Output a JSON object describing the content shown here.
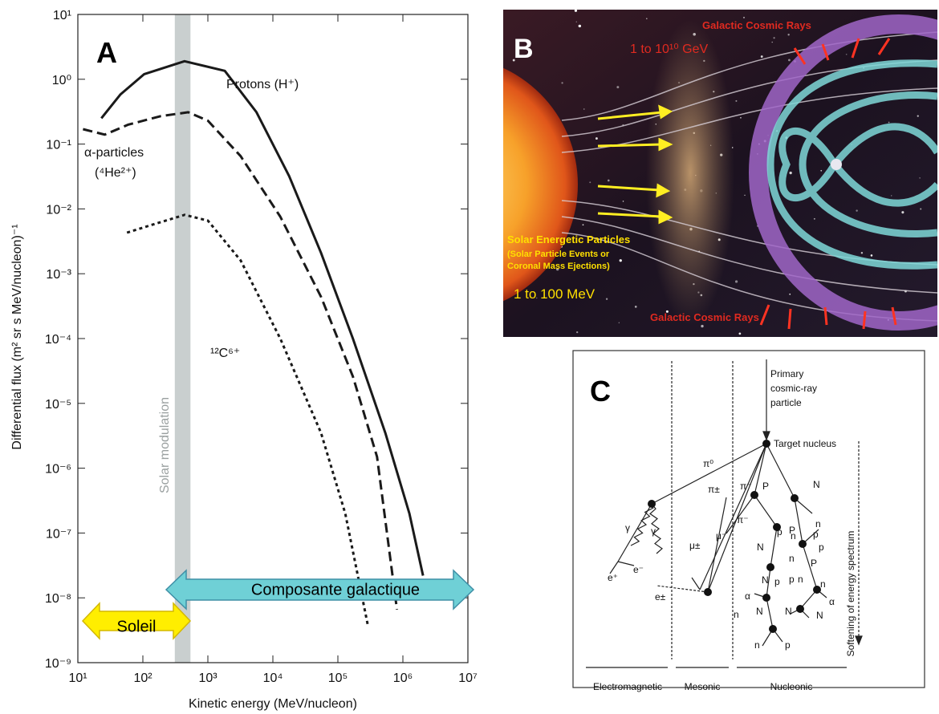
{
  "chart_data": {
    "type": "line",
    "panel_label": "A",
    "xlabel": "Kinetic energy (MeV/nucleon)",
    "ylabel": "Differential flux (m² sr s MeV/nucleon)⁻¹",
    "xscale": "log",
    "yscale": "log",
    "xlim": [
      10,
      10000000
    ],
    "ylim": [
      1e-09,
      10
    ],
    "xticks": [
      {
        "value": 10,
        "label": "10¹"
      },
      {
        "value": 100,
        "label": "10²"
      },
      {
        "value": 1000,
        "label": "10³"
      },
      {
        "value": 10000,
        "label": "10⁴"
      },
      {
        "value": 100000,
        "label": "10⁵"
      },
      {
        "value": 1000000,
        "label": "10⁶"
      },
      {
        "value": 10000000,
        "label": "10⁷"
      }
    ],
    "yticks": [
      {
        "value": 1e-09,
        "label": "10⁻⁹"
      },
      {
        "value": 1e-08,
        "label": "10⁻⁸"
      },
      {
        "value": 1e-07,
        "label": "10⁻⁷"
      },
      {
        "value": 1e-06,
        "label": "10⁻⁶"
      },
      {
        "value": 1e-05,
        "label": "10⁻⁵"
      },
      {
        "value": 0.0001,
        "label": "10⁻⁴"
      },
      {
        "value": 0.001,
        "label": "10⁻³"
      },
      {
        "value": 0.01,
        "label": "10⁻²"
      },
      {
        "value": 0.1,
        "label": "10⁻¹"
      },
      {
        "value": 1,
        "label": "10⁰"
      },
      {
        "value": 10,
        "label": "10¹"
      }
    ],
    "series": [
      {
        "name": "Protons (H⁺)",
        "color": "#1a1a1a",
        "dash": "solid",
        "x": [
          23,
          45,
          105,
          437,
          1820,
          5600,
          17800,
          55000,
          170000,
          537000,
          1260000,
          2040000
        ],
        "values": [
          0.25,
          0.58,
          1.2,
          1.9,
          1.35,
          0.31,
          0.032,
          0.0021,
          0.0001,
          3.5e-06,
          2e-07,
          2.2e-08
        ]
      },
      {
        "name": "α-particles",
        "color": "#1a1a1a",
        "dash": "dashed",
        "x": [
          12,
          26,
          60,
          190,
          500,
          1000,
          3200,
          13000,
          55000,
          170000,
          400000,
          810000
        ],
        "values": [
          0.17,
          0.14,
          0.2,
          0.27,
          0.31,
          0.23,
          0.065,
          0.0076,
          0.00044,
          2.6e-05,
          1.5e-06,
          6.6e-09
        ]
      },
      {
        "name": "¹²C⁶⁺",
        "color": "#1a1a1a",
        "dash": "dotted",
        "x": [
          57,
          140,
          440,
          1000,
          3200,
          13000,
          55000,
          130000,
          290000
        ],
        "values": [
          0.0043,
          0.0057,
          0.0081,
          0.0066,
          0.0016,
          0.0001,
          3.5e-06,
          2e-07,
          3.7e-09
        ]
      }
    ],
    "band": [
      310,
      540
    ],
    "band_color": "#c9cfcf",
    "annotations": [
      "(⁴He²⁺)",
      "Solar modulation",
      "Soleil",
      "Composante galactique"
    ]
  },
  "panel_b": {
    "label": "B",
    "texts": [
      "Galactic Cosmic Rays",
      "1 to 10¹⁰ GeV",
      "Solar Energetic Particles",
      "(Solar Particle Events or",
      "Coronal Mass Ejections)",
      "1 to 100 MeV",
      "Galactic Cosmic Rays"
    ]
  },
  "panel_c": {
    "label": "C",
    "texts": [
      "Primary",
      "cosmic-ray",
      "particle",
      "Target nucleus",
      "Softening of energy spectrum",
      "π⁰",
      "π±",
      "π⁻",
      "P",
      "N",
      "π⁻",
      "γ",
      "γ",
      "e⁺",
      "e⁻",
      "μ±",
      "μ⁻",
      "e±",
      "N",
      "n",
      "p",
      "P",
      "p",
      "n",
      "P",
      "p",
      "n",
      "p",
      "N",
      "p",
      "n",
      "α",
      "N",
      "N",
      "N",
      "n",
      "n",
      "α",
      "n",
      "p",
      "Electromagnetic",
      "Mesonic",
      "Nucleonic"
    ]
  }
}
